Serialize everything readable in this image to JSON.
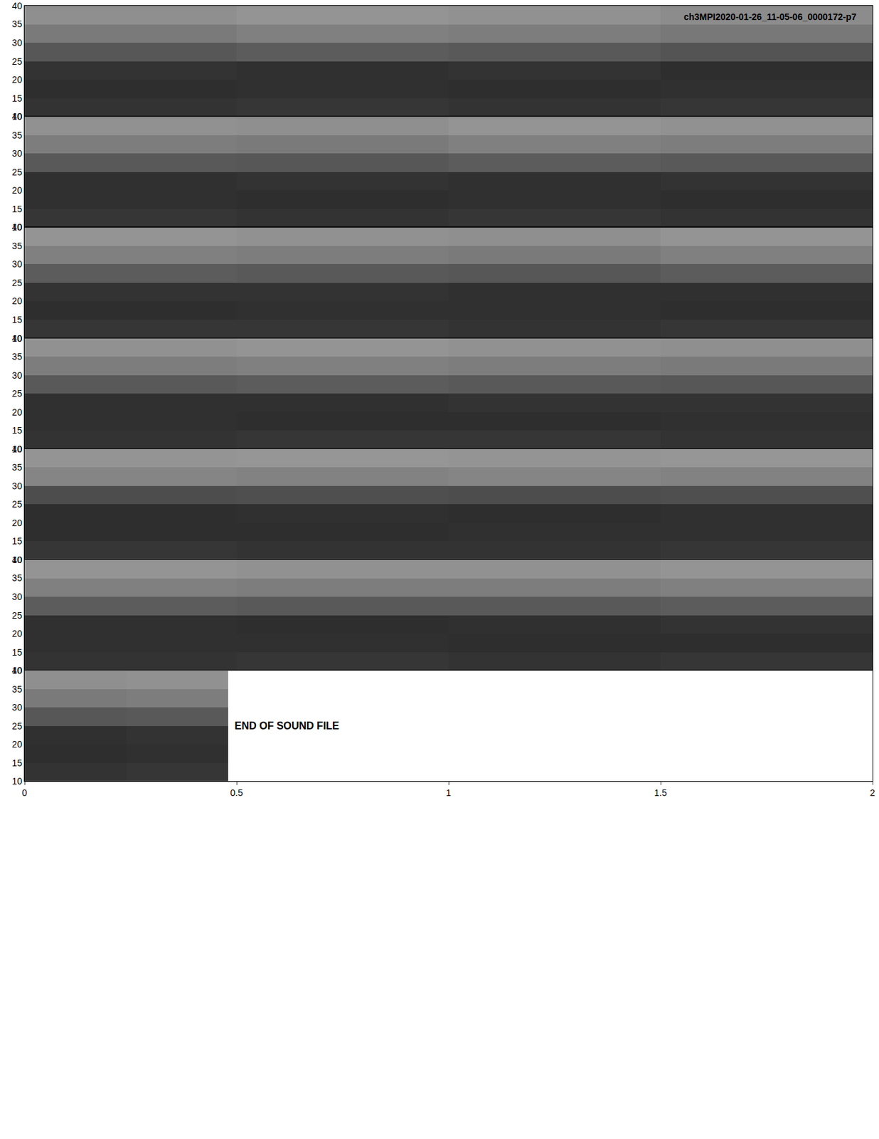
{
  "chart_data": {
    "type": "heatmap",
    "title": "ch3MPI2020-01-26_11-05-06_0000172-p7",
    "annotation": "END OF SOUND FILE",
    "xlim": [
      0,
      2
    ],
    "xticks": [
      0,
      0.5,
      1,
      1.5,
      2
    ],
    "ylim": [
      10,
      40
    ],
    "yticks": [
      10,
      15,
      20,
      25,
      30,
      35,
      40
    ],
    "zlim": [
      0,
      100
    ],
    "panels": [
      {
        "x": [
          0,
          0.5,
          1,
          1.5,
          2
        ],
        "y": [
          10,
          15,
          20,
          25,
          30,
          35,
          40
        ],
        "z": [
          [
            20,
            21,
            20,
            21
          ],
          [
            18,
            19,
            18,
            19
          ],
          [
            20,
            19,
            20,
            18
          ],
          [
            34,
            36,
            35,
            33
          ],
          [
            48,
            50,
            49,
            47
          ],
          [
            56,
            58,
            57,
            55
          ]
        ]
      },
      {
        "x": [
          0,
          0.5,
          1,
          1.5,
          2
        ],
        "y": [
          10,
          15,
          20,
          25,
          30,
          35,
          40
        ],
        "z": [
          [
            21,
            20,
            21,
            20
          ],
          [
            19,
            18,
            19,
            18
          ],
          [
            19,
            20,
            19,
            20
          ],
          [
            35,
            34,
            36,
            35
          ],
          [
            49,
            48,
            50,
            49
          ],
          [
            57,
            56,
            58,
            57
          ]
        ]
      },
      {
        "x": [
          0,
          0.5,
          1,
          1.5,
          2
        ],
        "y": [
          10,
          15,
          20,
          25,
          30,
          35,
          40
        ],
        "z": [
          [
            21,
            21,
            20,
            21
          ],
          [
            18,
            19,
            19,
            18
          ],
          [
            20,
            20,
            19,
            19
          ],
          [
            36,
            35,
            34,
            36
          ],
          [
            50,
            49,
            48,
            50
          ],
          [
            58,
            57,
            56,
            58
          ]
        ]
      },
      {
        "x": [
          0,
          0.5,
          1,
          1.5,
          2
        ],
        "y": [
          10,
          15,
          20,
          25,
          30,
          35,
          40
        ],
        "z": [
          [
            20,
            21,
            21,
            20
          ],
          [
            19,
            18,
            18,
            19
          ],
          [
            19,
            19,
            20,
            20
          ],
          [
            35,
            36,
            35,
            34
          ],
          [
            49,
            50,
            49,
            48
          ],
          [
            57,
            58,
            57,
            56
          ]
        ]
      },
      {
        "x": [
          0,
          0.5,
          1,
          1.5,
          2
        ],
        "y": [
          10,
          15,
          20,
          25,
          30,
          35,
          40
        ],
        "z": [
          [
            21,
            20,
            20,
            21
          ],
          [
            18,
            18,
            19,
            19
          ],
          [
            18,
            19,
            18,
            19
          ],
          [
            30,
            31,
            30,
            31
          ],
          [
            52,
            51,
            52,
            51
          ],
          [
            58,
            59,
            58,
            59
          ]
        ]
      },
      {
        "x": [
          0,
          0.5,
          1,
          1.5,
          2
        ],
        "y": [
          10,
          15,
          20,
          25,
          30,
          35,
          40
        ],
        "z": [
          [
            20,
            21,
            20,
            21
          ],
          [
            19,
            19,
            18,
            18
          ],
          [
            19,
            18,
            19,
            20
          ],
          [
            36,
            35,
            35,
            36
          ],
          [
            50,
            49,
            49,
            50
          ],
          [
            58,
            57,
            57,
            58
          ]
        ]
      },
      {
        "x": [
          0,
          0.24,
          0.48
        ],
        "y": [
          10,
          15,
          20,
          25,
          30,
          35,
          40
        ],
        "z": [
          [
            20,
            21
          ],
          [
            18,
            19
          ],
          [
            19,
            20
          ],
          [
            34,
            35
          ],
          [
            48,
            49
          ],
          [
            56,
            57
          ]
        ]
      },
      null,
      null,
      null
    ]
  }
}
